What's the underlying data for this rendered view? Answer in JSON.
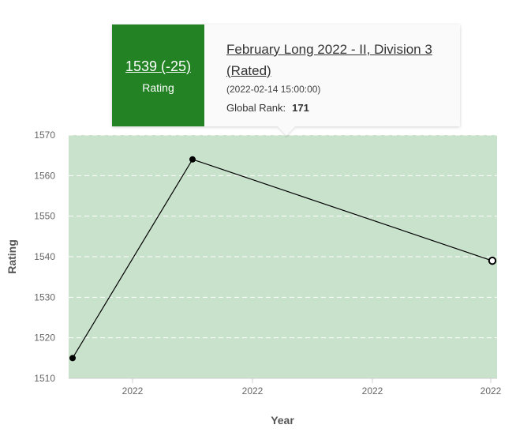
{
  "chart_data": {
    "type": "line",
    "xlabel": "Year",
    "ylabel": "Rating",
    "ylim": [
      1510,
      1570
    ],
    "yticks": [
      1510,
      1520,
      1530,
      1540,
      1550,
      1560,
      1570
    ],
    "xtick_labels": [
      "2022",
      "2022",
      "2022",
      "2022"
    ],
    "series": [
      {
        "points": [
          {
            "x": 0,
            "y": 1515
          },
          {
            "x": 1,
            "y": 1564
          },
          {
            "x": 2,
            "y": 1539
          }
        ]
      }
    ],
    "highlighted_point": 2,
    "grid": true,
    "colors": {
      "plot_background": "#c9e2cc",
      "line": "#000000",
      "gridline": "#ffffff",
      "tooltip_accent": "#228224"
    }
  },
  "tooltip": {
    "rating": "1539 (-25)",
    "rating_label": "Rating",
    "contest": "February Long 2022 - II, Division 3 (Rated)",
    "date": "(2022-02-14 15:00:00)",
    "rank_label": "Global Rank:",
    "rank_value": "171"
  }
}
